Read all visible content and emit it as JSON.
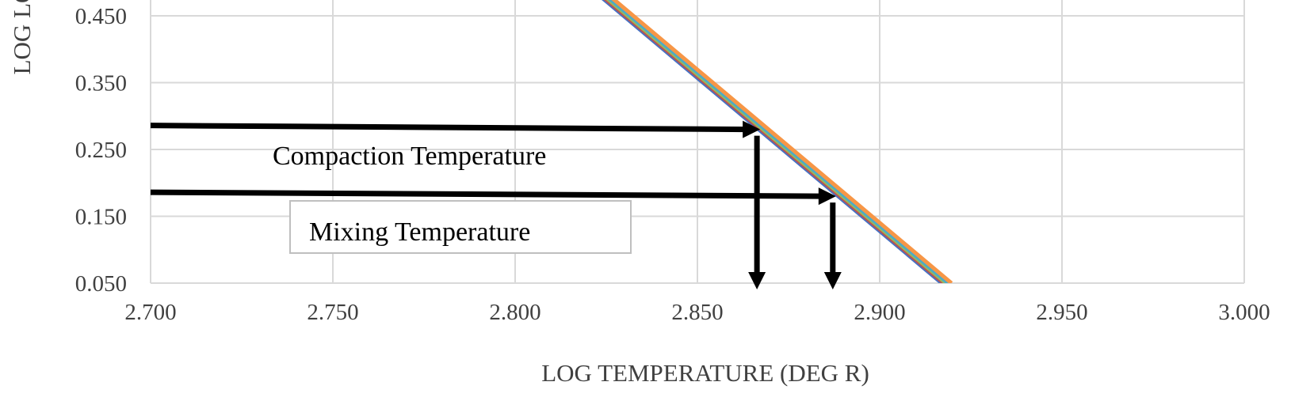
{
  "chart_data": {
    "type": "line",
    "title": "",
    "xlabel": "LOG TEMPERATURE (DEG R)",
    "ylabel": "LOG LO",
    "xlim": [
      2.7,
      3.0
    ],
    "ylim": [
      0.05,
      0.45
    ],
    "x_ticks": [
      "2.700",
      "2.750",
      "2.800",
      "2.850",
      "2.900",
      "2.950",
      "3.000"
    ],
    "y_ticks": [
      "0.050",
      "0.150",
      "0.250",
      "0.350",
      "0.450"
    ],
    "grid": true,
    "series": [
      {
        "color": "#4472C4",
        "x": [
          2.8188,
          2.917
        ],
        "y": [
          0.5,
          0.05
        ]
      },
      {
        "color": "#C0504D",
        "x": [
          2.8194,
          2.9176
        ],
        "y": [
          0.5,
          0.05
        ]
      },
      {
        "color": "#9BBB59",
        "x": [
          2.82,
          2.9182
        ],
        "y": [
          0.5,
          0.05
        ]
      },
      {
        "color": "#4BACC6",
        "x": [
          2.8206,
          2.9188
        ],
        "y": [
          0.5,
          0.05
        ]
      },
      {
        "color": "#F79646",
        "x": [
          2.8215,
          2.9197
        ],
        "y": [
          0.5,
          0.05
        ]
      }
    ],
    "annotations": [
      {
        "label": "Compaction Temperature",
        "log_viscosity": 0.28,
        "log_temperature": 2.8672,
        "boxed": false
      },
      {
        "label": "Mixing Temperature",
        "log_viscosity": 0.18,
        "log_temperature": 2.888,
        "boxed": true
      }
    ]
  }
}
